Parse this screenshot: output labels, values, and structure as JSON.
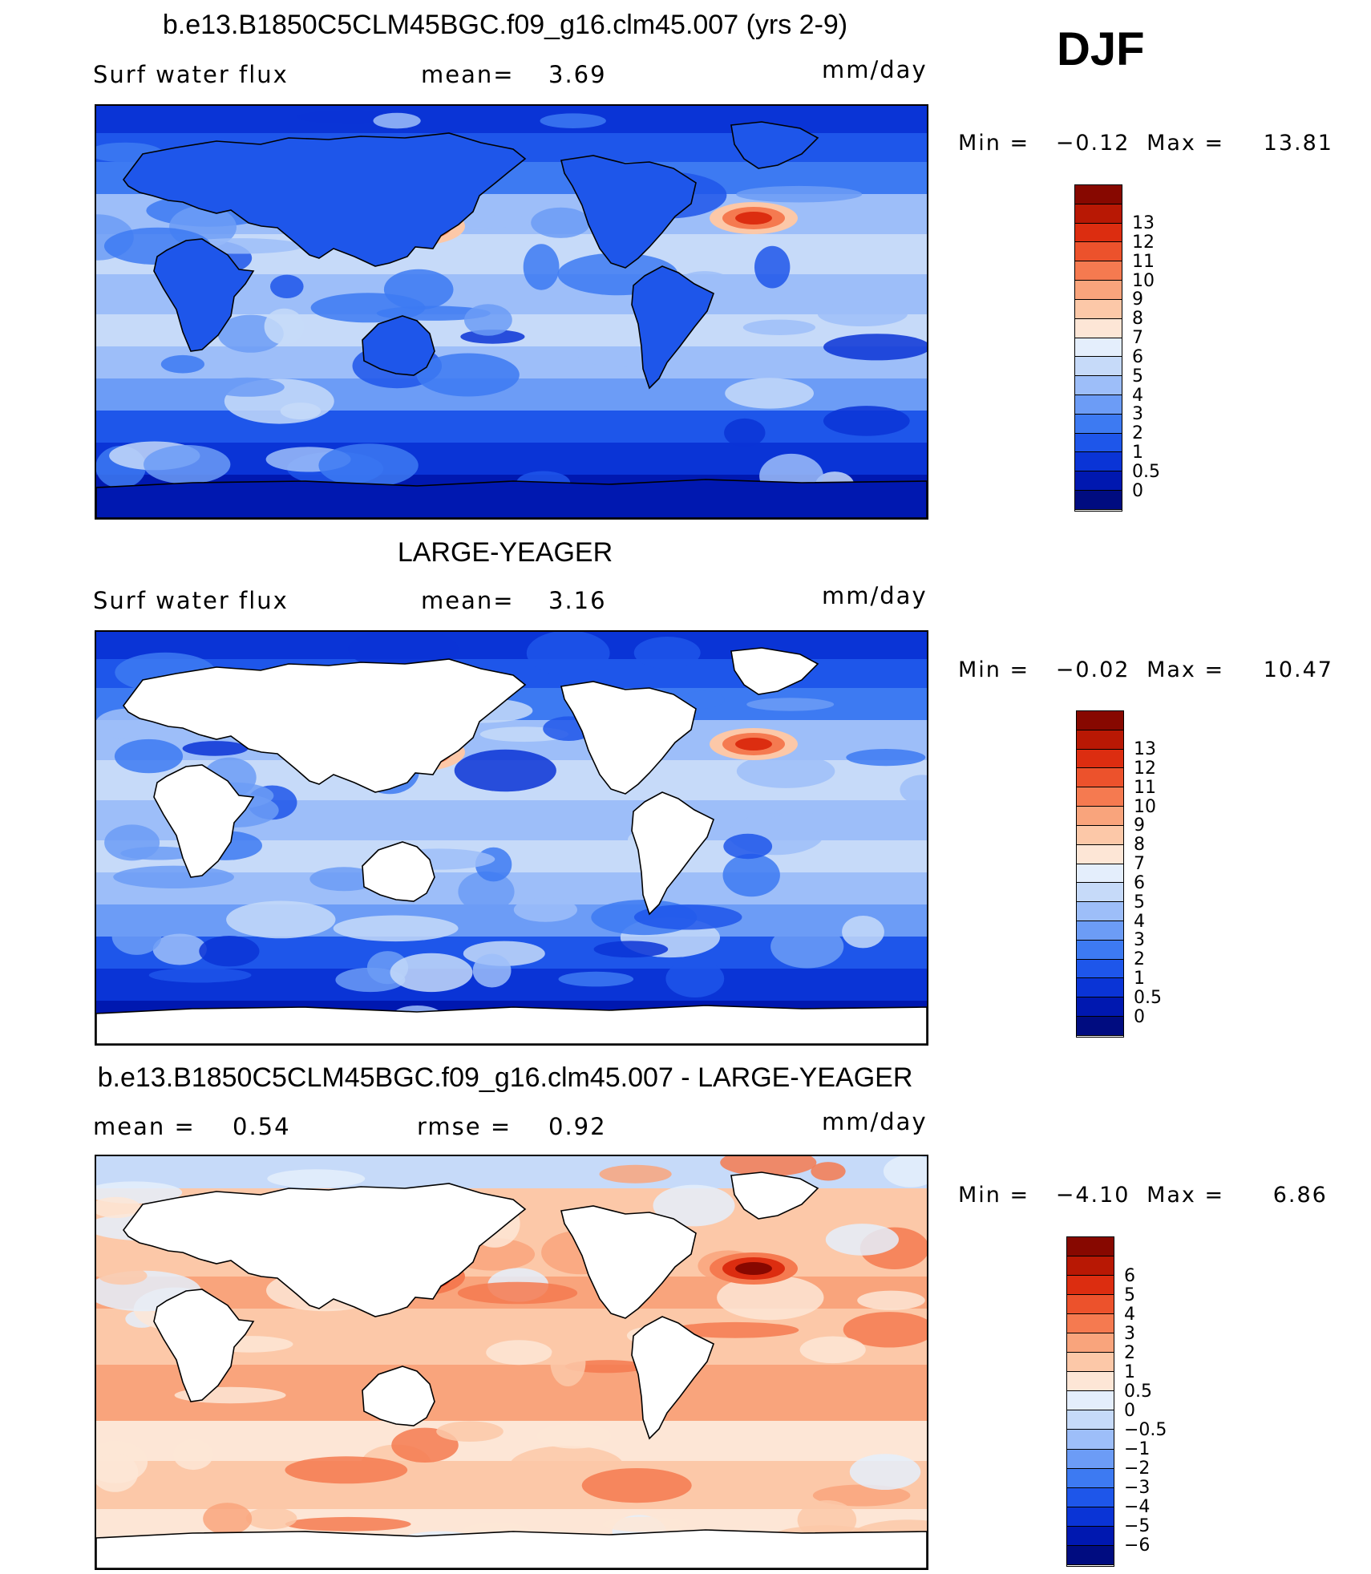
{
  "season": "DJF",
  "colors": {
    "full": [
      "#000c80",
      "#0018b0",
      "#0a34d6",
      "#1e56ea",
      "#3d7af2",
      "#6c9cf6",
      "#9dbef9",
      "#c6daf9",
      "#e4eefc",
      "#fde6d6",
      "#fcc8a8",
      "#f9a47c",
      "#f57a50",
      "#ec522c",
      "#dc2d10",
      "#b81804",
      "#870800"
    ],
    "diff": [
      "#000c80",
      "#0018b0",
      "#0a34d6",
      "#1e56ea",
      "#3d7af2",
      "#6c9cf6",
      "#9dbef9",
      "#c6daf9",
      "#e4eefc",
      "#fde6d6",
      "#fcc8a8",
      "#f9a47c",
      "#f57a50",
      "#ec522c",
      "#dc2d10",
      "#b81804",
      "#870800"
    ]
  },
  "panels": [
    {
      "title": "b.e13.B1850C5CLM45BGC.f09_g16.clm45.007 (yrs 2-9)",
      "left_label": "Surf water flux",
      "stat_label": "mean=",
      "stat_value": "3.69",
      "stat2_label": "",
      "stat2_value": "",
      "units": "mm/day",
      "min_label": "Min =",
      "min_value": "−0.12",
      "max_label": "Max =",
      "max_value": "13.81",
      "land_filled": true
    },
    {
      "title": "LARGE-YEAGER",
      "left_label": "Surf water flux",
      "stat_label": "mean=",
      "stat_value": "3.16",
      "stat2_label": "",
      "stat2_value": "",
      "units": "mm/day",
      "min_label": "Min =",
      "min_value": "−0.02",
      "max_label": "Max =",
      "max_value": "10.47",
      "land_filled": false
    },
    {
      "title": "b.e13.B1850C5CLM45BGC.f09_g16.clm45.007 - LARGE-YEAGER",
      "left_label": "",
      "stat_label": "mean =",
      "stat_value": "0.54",
      "stat2_label": "rmse =",
      "stat2_value": "0.92",
      "units": "mm/day",
      "min_label": "Min =",
      "min_value": "−4.10",
      "max_label": "Max =",
      "max_value": "6.86",
      "land_filled": false
    }
  ],
  "chart_data": [
    {
      "type": "heatmap",
      "title": "b.e13.B1850C5CLM45BGC.f09_g16.clm45.007 (yrs 2-9)",
      "field": "Surf water flux",
      "units": "mm/day",
      "mean": 3.69,
      "min": -0.12,
      "max": 13.81,
      "colorbar_levels": [
        "0",
        "0.5",
        "1",
        "2",
        "3",
        "4",
        "5",
        "6",
        "7",
        "8",
        "9",
        "10",
        "11",
        "12",
        "13"
      ]
    },
    {
      "type": "heatmap",
      "title": "LARGE-YEAGER",
      "field": "Surf water flux",
      "units": "mm/day",
      "mean": 3.16,
      "min": -0.02,
      "max": 10.47,
      "colorbar_levels": [
        "0",
        "0.5",
        "1",
        "2",
        "3",
        "4",
        "5",
        "6",
        "7",
        "8",
        "9",
        "10",
        "11",
        "12",
        "13"
      ]
    },
    {
      "type": "heatmap",
      "title": "b.e13.B1850C5CLM45BGC.f09_g16.clm45.007 - LARGE-YEAGER",
      "units": "mm/day",
      "mean": 0.54,
      "rmse": 0.92,
      "min": -4.1,
      "max": 6.86,
      "colorbar_levels": [
        "−6",
        "−5",
        "−4",
        "−3",
        "−2",
        "−1",
        "−0.5",
        "0",
        "0.5",
        "1",
        "2",
        "3",
        "4",
        "5",
        "6"
      ]
    }
  ]
}
